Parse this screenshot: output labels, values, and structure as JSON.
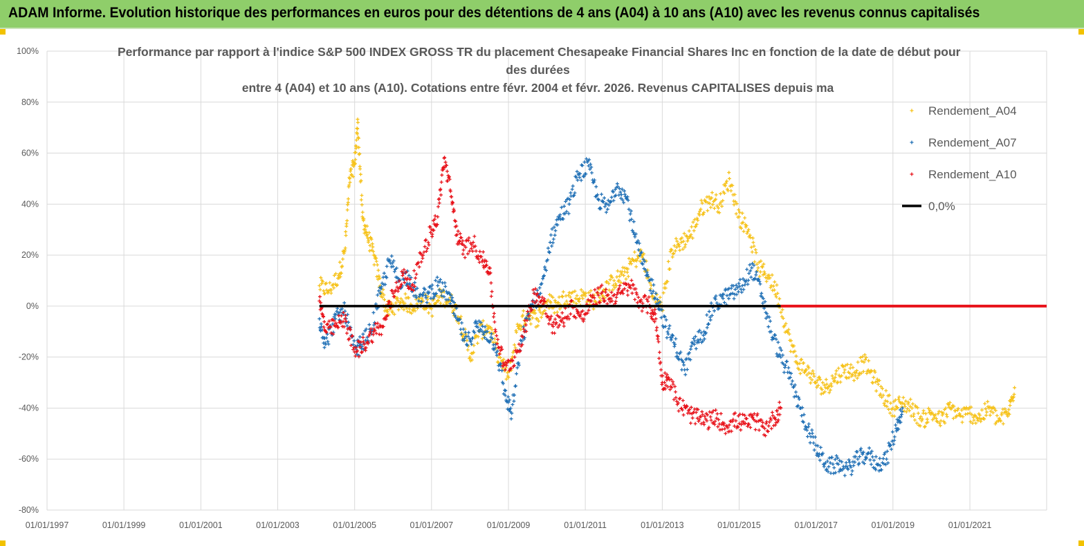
{
  "banner": {
    "title": "ADAM Informe. Evolution historique des performances en euros pour des détentions de 4 ans (A04) à 10 ans (A10) avec les revenus connus capitalisés"
  },
  "colors": {
    "banner_bg": "#8fce6a",
    "A04": "#f6c21a",
    "A07": "#1f6fb5",
    "A10": "#e8121a",
    "zero": "#000000",
    "grid": "#d9d9d9",
    "text": "#595959"
  },
  "chart_data": {
    "type": "scatter",
    "title_lines": [
      "Performance par rapport à l'indice S&P 500 INDEX GROSS TR  du placement Chesapeake Financial Shares Inc en fonction de la date de début pour",
      "des durées",
      "entre 4 (A04) et 10 ans (A10). Cotations entre févr. 2004 et févr. 2026. Revenus CAPITALISES depuis ma"
    ],
    "xlabel": "",
    "ylabel": "",
    "x_range": [
      "1997-01-01",
      "2022-12-31"
    ],
    "x_ticks": [
      "01/01/1997",
      "01/01/1999",
      "01/01/2001",
      "01/01/2003",
      "01/01/2005",
      "01/01/2007",
      "01/01/2009",
      "01/01/2011",
      "01/01/2013",
      "01/01/2015",
      "01/01/2017",
      "01/01/2019",
      "01/01/2021"
    ],
    "y_range": [
      -80,
      100
    ],
    "y_ticks": [
      100,
      80,
      60,
      40,
      20,
      0,
      -20,
      -40,
      -60,
      -80
    ],
    "y_tick_labels": [
      "100%",
      "80%",
      "60%",
      "40%",
      "20%",
      "0%",
      "-20%",
      "-40%",
      "-60%",
      "-80%"
    ],
    "grid": true,
    "legend_position": "top-right",
    "series": [
      {
        "name": "Rendement_A04",
        "marker": "+",
        "points": [
          [
            "2004-02-01",
            8
          ],
          [
            "2004-05-01",
            6
          ],
          [
            "2004-08-01",
            12
          ],
          [
            "2004-10-01",
            22
          ],
          [
            "2004-11-15",
            50
          ],
          [
            "2005-01-01",
            56
          ],
          [
            "2005-02-01",
            72
          ],
          [
            "2005-03-15",
            35
          ],
          [
            "2005-05-01",
            28
          ],
          [
            "2005-07-01",
            20
          ],
          [
            "2005-09-01",
            8
          ],
          [
            "2005-11-01",
            -2
          ],
          [
            "2006-01-01",
            0
          ],
          [
            "2006-04-01",
            2
          ],
          [
            "2006-07-01",
            0
          ],
          [
            "2006-10-01",
            3
          ],
          [
            "2007-01-01",
            -1
          ],
          [
            "2007-04-01",
            4
          ],
          [
            "2007-07-01",
            2
          ],
          [
            "2007-10-01",
            -5
          ],
          [
            "2008-01-01",
            -20
          ],
          [
            "2008-04-01",
            -10
          ],
          [
            "2008-07-01",
            -8
          ],
          [
            "2008-10-01",
            -20
          ],
          [
            "2009-01-01",
            -28
          ],
          [
            "2009-04-01",
            -8
          ],
          [
            "2009-07-01",
            -3
          ],
          [
            "2009-10-01",
            -5
          ],
          [
            "2010-01-01",
            2
          ],
          [
            "2010-04-01",
            0
          ],
          [
            "2010-07-01",
            4
          ],
          [
            "2010-10-01",
            3
          ],
          [
            "2011-01-01",
            4
          ],
          [
            "2011-04-01",
            2
          ],
          [
            "2011-07-01",
            6
          ],
          [
            "2011-10-01",
            10
          ],
          [
            "2012-01-01",
            12
          ],
          [
            "2012-04-01",
            18
          ],
          [
            "2012-07-01",
            20
          ],
          [
            "2012-10-01",
            4
          ],
          [
            "2013-01-01",
            0
          ],
          [
            "2013-04-01",
            22
          ],
          [
            "2013-07-01",
            25
          ],
          [
            "2013-10-01",
            28
          ],
          [
            "2014-01-01",
            38
          ],
          [
            "2014-04-01",
            42
          ],
          [
            "2014-07-01",
            40
          ],
          [
            "2014-10-01",
            50
          ],
          [
            "2015-01-01",
            35
          ],
          [
            "2015-04-01",
            30
          ],
          [
            "2015-07-01",
            15
          ],
          [
            "2015-10-01",
            12
          ],
          [
            "2016-01-01",
            5
          ],
          [
            "2016-04-01",
            -10
          ],
          [
            "2016-07-01",
            -22
          ],
          [
            "2016-10-01",
            -25
          ],
          [
            "2017-01-01",
            -30
          ],
          [
            "2017-04-01",
            -32
          ],
          [
            "2017-07-01",
            -28
          ],
          [
            "2017-10-01",
            -25
          ],
          [
            "2018-01-01",
            -26
          ],
          [
            "2018-04-01",
            -22
          ],
          [
            "2018-07-01",
            -28
          ],
          [
            "2018-10-01",
            -35
          ],
          [
            "2019-01-01",
            -40
          ],
          [
            "2019-04-01",
            -38
          ],
          [
            "2019-07-01",
            -40
          ],
          [
            "2019-10-01",
            -45
          ],
          [
            "2020-01-01",
            -42
          ],
          [
            "2020-04-01",
            -45
          ],
          [
            "2020-07-01",
            -40
          ],
          [
            "2020-10-01",
            -43
          ],
          [
            "2021-01-01",
            -42
          ],
          [
            "2021-04-01",
            -44
          ],
          [
            "2021-07-01",
            -40
          ],
          [
            "2021-10-01",
            -45
          ],
          [
            "2022-01-01",
            -42
          ],
          [
            "2022-03-01",
            -32
          ]
        ]
      },
      {
        "name": "Rendement_A07",
        "marker": "+",
        "points": [
          [
            "2004-02-01",
            -5
          ],
          [
            "2004-04-01",
            -15
          ],
          [
            "2004-07-01",
            -5
          ],
          [
            "2004-10-01",
            -2
          ],
          [
            "2005-01-01",
            -18
          ],
          [
            "2005-03-01",
            -15
          ],
          [
            "2005-06-01",
            -10
          ],
          [
            "2005-09-01",
            5
          ],
          [
            "2005-12-01",
            18
          ],
          [
            "2006-03-01",
            10
          ],
          [
            "2006-06-01",
            12
          ],
          [
            "2006-09-01",
            2
          ],
          [
            "2006-12-01",
            5
          ],
          [
            "2007-03-01",
            8
          ],
          [
            "2007-06-01",
            5
          ],
          [
            "2007-09-01",
            -5
          ],
          [
            "2007-12-01",
            -15
          ],
          [
            "2008-03-01",
            -8
          ],
          [
            "2008-06-01",
            -10
          ],
          [
            "2008-09-01",
            -15
          ],
          [
            "2008-12-01",
            -35
          ],
          [
            "2009-02-01",
            -42
          ],
          [
            "2009-05-01",
            -15
          ],
          [
            "2009-08-01",
            0
          ],
          [
            "2009-11-01",
            5
          ],
          [
            "2010-02-01",
            25
          ],
          [
            "2010-05-01",
            35
          ],
          [
            "2010-08-01",
            40
          ],
          [
            "2010-11-01",
            52
          ],
          [
            "2011-02-01",
            55
          ],
          [
            "2011-05-01",
            42
          ],
          [
            "2011-08-01",
            38
          ],
          [
            "2011-11-01",
            48
          ],
          [
            "2012-02-01",
            42
          ],
          [
            "2012-05-01",
            25
          ],
          [
            "2012-08-01",
            12
          ],
          [
            "2012-11-01",
            5
          ],
          [
            "2013-02-01",
            -8
          ],
          [
            "2013-05-01",
            -15
          ],
          [
            "2013-08-01",
            -25
          ],
          [
            "2013-11-01",
            -15
          ],
          [
            "2014-02-01",
            -10
          ],
          [
            "2014-05-01",
            0
          ],
          [
            "2014-08-01",
            3
          ],
          [
            "2014-11-01",
            5
          ],
          [
            "2015-02-01",
            8
          ],
          [
            "2015-05-01",
            15
          ],
          [
            "2015-08-01",
            5
          ],
          [
            "2015-11-01",
            -10
          ],
          [
            "2016-02-01",
            -20
          ],
          [
            "2016-05-01",
            -28
          ],
          [
            "2016-08-01",
            -40
          ],
          [
            "2016-11-01",
            -50
          ],
          [
            "2017-02-01",
            -58
          ],
          [
            "2017-05-01",
            -63
          ],
          [
            "2017-08-01",
            -62
          ],
          [
            "2017-11-01",
            -64
          ],
          [
            "2018-02-01",
            -60
          ],
          [
            "2018-05-01",
            -58
          ],
          [
            "2018-08-01",
            -62
          ],
          [
            "2018-11-01",
            -60
          ],
          [
            "2019-02-01",
            -48
          ],
          [
            "2019-04-01",
            -40
          ]
        ]
      },
      {
        "name": "Rendement_A10",
        "marker": "+",
        "points": [
          [
            "2004-02-01",
            2
          ],
          [
            "2004-04-01",
            -10
          ],
          [
            "2004-07-01",
            -8
          ],
          [
            "2004-10-01",
            -5
          ],
          [
            "2005-01-01",
            -18
          ],
          [
            "2005-04-01",
            -15
          ],
          [
            "2005-07-01",
            -10
          ],
          [
            "2005-10-01",
            -8
          ],
          [
            "2006-01-01",
            5
          ],
          [
            "2006-04-01",
            12
          ],
          [
            "2006-07-01",
            8
          ],
          [
            "2006-10-01",
            20
          ],
          [
            "2007-01-01",
            30
          ],
          [
            "2007-03-01",
            35
          ],
          [
            "2007-05-01",
            58
          ],
          [
            "2007-07-01",
            45
          ],
          [
            "2007-09-01",
            28
          ],
          [
            "2007-11-01",
            22
          ],
          [
            "2008-02-01",
            25
          ],
          [
            "2008-05-01",
            18
          ],
          [
            "2008-07-01",
            15
          ],
          [
            "2008-09-01",
            -10
          ],
          [
            "2008-12-01",
            -25
          ],
          [
            "2009-03-01",
            -20
          ],
          [
            "2009-06-01",
            -10
          ],
          [
            "2009-09-01",
            5
          ],
          [
            "2009-12-01",
            2
          ],
          [
            "2010-03-01",
            -8
          ],
          [
            "2010-06-01",
            -5
          ],
          [
            "2010-09-01",
            0
          ],
          [
            "2010-12-01",
            -5
          ],
          [
            "2011-03-01",
            2
          ],
          [
            "2011-06-01",
            5
          ],
          [
            "2011-09-01",
            3
          ],
          [
            "2011-12-01",
            5
          ],
          [
            "2012-03-01",
            8
          ],
          [
            "2012-06-01",
            2
          ],
          [
            "2012-09-01",
            0
          ],
          [
            "2012-11-01",
            -5
          ],
          [
            "2013-01-01",
            -30
          ],
          [
            "2013-03-01",
            -28
          ],
          [
            "2013-06-01",
            -38
          ],
          [
            "2013-09-01",
            -42
          ],
          [
            "2013-12-01",
            -44
          ],
          [
            "2014-03-01",
            -45
          ],
          [
            "2014-06-01",
            -44
          ],
          [
            "2014-09-01",
            -47
          ],
          [
            "2014-12-01",
            -45
          ],
          [
            "2015-03-01",
            -46
          ],
          [
            "2015-06-01",
            -45
          ],
          [
            "2015-09-01",
            -48
          ],
          [
            "2015-12-01",
            -44
          ],
          [
            "2016-02-01",
            -40
          ]
        ]
      },
      {
        "name": "0,0%",
        "marker": "line",
        "points": [
          [
            "2004-02-01",
            0
          ],
          [
            "2016-02-01",
            0
          ]
        ]
      }
    ],
    "flat_red_segment": {
      "from": "2016-02-01",
      "to": "2022-12-31",
      "value": 0
    }
  }
}
